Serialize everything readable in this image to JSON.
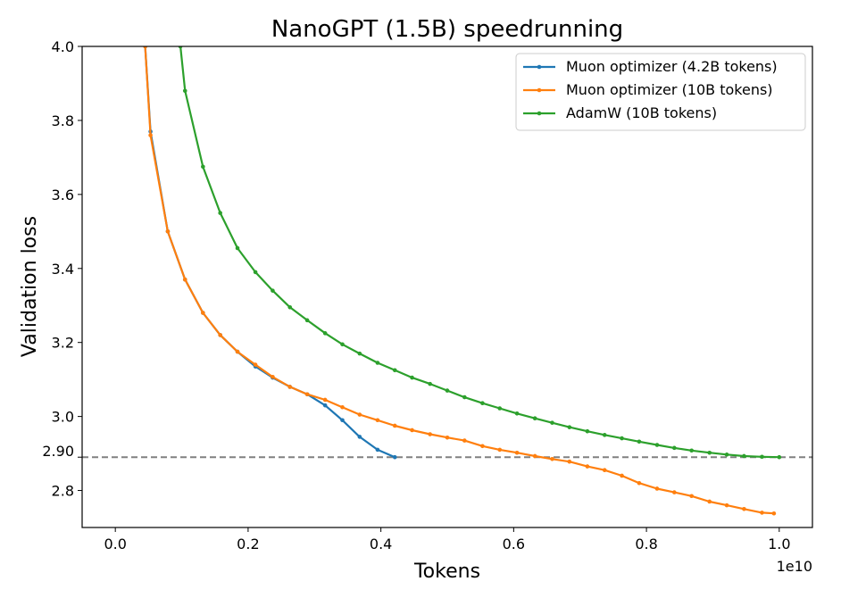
{
  "chart_data": {
    "type": "line",
    "title": "NanoGPT (1.5B) speedrunning",
    "xlabel": "Tokens",
    "ylabel": "Validation loss",
    "x_offset_label": "1e10",
    "xlim": [
      -0.05,
      1.05
    ],
    "ylim": [
      2.7,
      4.0
    ],
    "x_ticks": [
      0.0,
      0.2,
      0.4,
      0.6,
      0.8,
      1.0
    ],
    "x_tick_labels": [
      "0.0",
      "0.2",
      "0.4",
      "0.6",
      "0.8",
      "1.0"
    ],
    "y_ticks": [
      2.8,
      3.0,
      3.2,
      3.4,
      3.6,
      3.8,
      4.0
    ],
    "y_tick_labels": [
      "2.8",
      "3.0",
      "3.2",
      "3.4",
      "3.6",
      "3.8",
      "4.0"
    ],
    "reference_line": {
      "y": 2.89,
      "label": "2.90",
      "color": "#808080",
      "style": "dashed"
    },
    "grid": false,
    "legend_position": "top-right",
    "series": [
      {
        "name": "Muon optimizer (4.2B tokens)",
        "color": "#1f77b4",
        "x": [
          0.045,
          0.053,
          0.079,
          0.105,
          0.132,
          0.158,
          0.184,
          0.211,
          0.237,
          0.263,
          0.289,
          0.316,
          0.342,
          0.368,
          0.395,
          0.421
        ],
        "y": [
          4.0,
          3.77,
          3.5,
          3.37,
          3.28,
          3.22,
          3.175,
          3.135,
          3.105,
          3.08,
          3.06,
          3.03,
          2.99,
          2.945,
          2.91,
          2.89
        ]
      },
      {
        "name": "Muon optimizer (10B tokens)",
        "color": "#ff7f0e",
        "x": [
          0.045,
          0.053,
          0.079,
          0.105,
          0.132,
          0.158,
          0.184,
          0.211,
          0.237,
          0.263,
          0.289,
          0.316,
          0.342,
          0.368,
          0.395,
          0.421,
          0.447,
          0.474,
          0.5,
          0.526,
          0.553,
          0.579,
          0.605,
          0.632,
          0.658,
          0.684,
          0.711,
          0.737,
          0.763,
          0.789,
          0.816,
          0.842,
          0.868,
          0.895,
          0.921,
          0.947,
          0.974,
          0.992
        ],
        "y": [
          4.0,
          3.76,
          3.5,
          3.37,
          3.28,
          3.22,
          3.175,
          3.14,
          3.107,
          3.08,
          3.06,
          3.045,
          3.025,
          3.005,
          2.99,
          2.975,
          2.963,
          2.952,
          2.943,
          2.935,
          2.92,
          2.91,
          2.902,
          2.893,
          2.885,
          2.878,
          2.865,
          2.855,
          2.84,
          2.82,
          2.805,
          2.795,
          2.785,
          2.77,
          2.76,
          2.75,
          2.74,
          2.738
        ]
      },
      {
        "name": "AdamW (10B tokens)",
        "color": "#2ca02c",
        "x": [
          0.098,
          0.105,
          0.132,
          0.158,
          0.184,
          0.211,
          0.237,
          0.263,
          0.289,
          0.316,
          0.342,
          0.368,
          0.395,
          0.421,
          0.447,
          0.474,
          0.5,
          0.526,
          0.553,
          0.579,
          0.605,
          0.632,
          0.658,
          0.684,
          0.711,
          0.737,
          0.763,
          0.789,
          0.816,
          0.842,
          0.868,
          0.895,
          0.921,
          0.947,
          0.974,
          1.0
        ],
        "y": [
          4.0,
          3.88,
          3.675,
          3.55,
          3.455,
          3.39,
          3.34,
          3.295,
          3.26,
          3.225,
          3.195,
          3.17,
          3.145,
          3.125,
          3.105,
          3.088,
          3.07,
          3.052,
          3.036,
          3.022,
          3.008,
          2.995,
          2.983,
          2.971,
          2.96,
          2.95,
          2.941,
          2.932,
          2.923,
          2.915,
          2.908,
          2.902,
          2.897,
          2.893,
          2.891,
          2.89
        ]
      }
    ]
  }
}
